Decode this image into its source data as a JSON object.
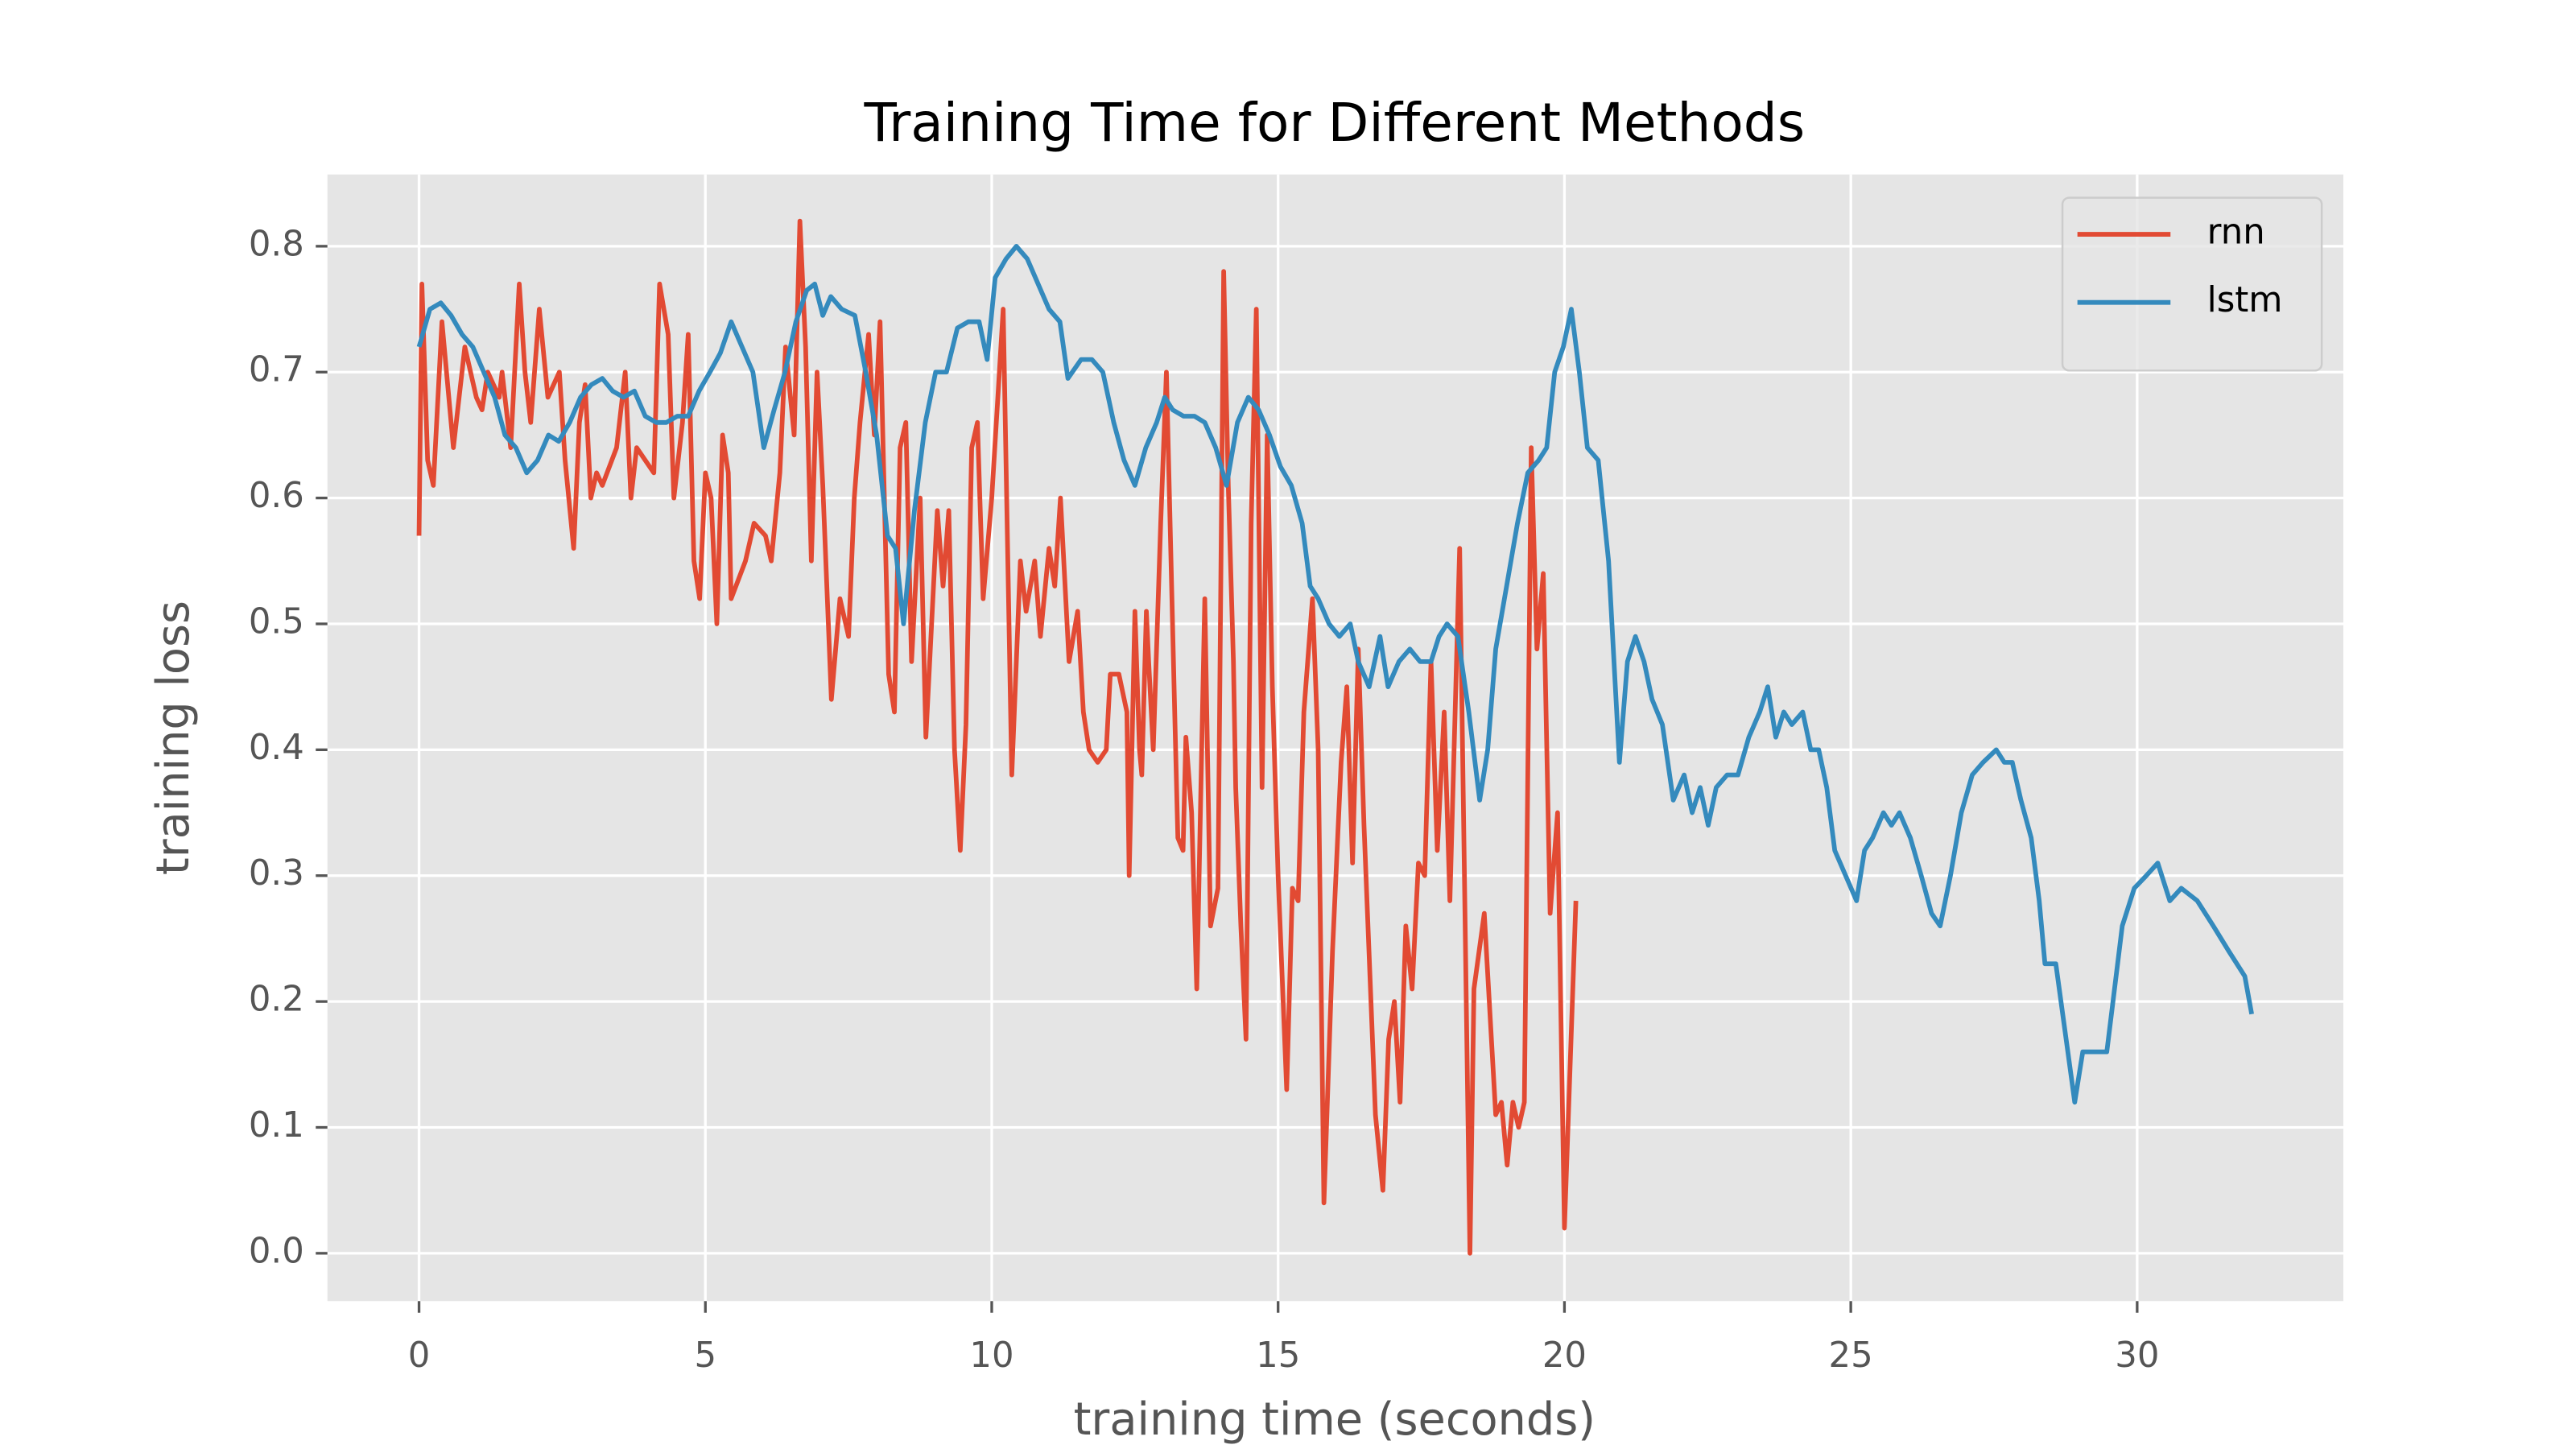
{
  "chart_data": {
    "type": "line",
    "title": "Training Time for Different Methods",
    "xlabel": "training time (seconds)",
    "ylabel": "training loss",
    "xlim": [
      -1.6,
      33.6
    ],
    "ylim": [
      -0.038,
      0.857
    ],
    "xticks": [
      0,
      5,
      10,
      15,
      20,
      25,
      30
    ],
    "yticks": [
      {
        "value": 0,
        "label": "0.0"
      },
      0.1,
      0.2,
      0.3,
      0.4,
      0.5,
      0.6,
      0.7,
      0.8
    ],
    "grid": true,
    "legend": "upper right",
    "series": [
      {
        "name": "rnn",
        "color": "#E24A33",
        "x": [
          0,
          0.05,
          0.15,
          0.25,
          0.4,
          0.6,
          0.8,
          1.0,
          1.1,
          1.2,
          1.4,
          1.45,
          1.6,
          1.75,
          1.85,
          1.95,
          2.1,
          2.25,
          2.45,
          2.55,
          2.7,
          2.8,
          2.9,
          3.0,
          3.1,
          3.2,
          3.45,
          3.6,
          3.7,
          3.8,
          4.1,
          4.2,
          4.35,
          4.45,
          4.6,
          4.7,
          4.8,
          4.9,
          5.0,
          5.1,
          5.2,
          5.3,
          5.4,
          5.45,
          5.7,
          5.85,
          6.05,
          6.15,
          6.3,
          6.4,
          6.55,
          6.65,
          6.75,
          6.85,
          6.95,
          7.05,
          7.2,
          7.35,
          7.5,
          7.6,
          7.7,
          7.85,
          7.95,
          8.05,
          8.2,
          8.3,
          8.4,
          8.5,
          8.6,
          8.75,
          8.85,
          9.05,
          9.15,
          9.25,
          9.35,
          9.45,
          9.55,
          9.65,
          9.75,
          9.85,
          10.0,
          10.2,
          10.35,
          10.5,
          10.6,
          10.75,
          10.85,
          11.0,
          11.1,
          11.2,
          11.35,
          11.5,
          11.6,
          11.7,
          11.85,
          12.0,
          12.07,
          12.22,
          12.36,
          12.4,
          12.5,
          12.58,
          12.62,
          12.7,
          12.74,
          12.82,
          12.95,
          13.05,
          13.2,
          13.25,
          13.34,
          13.39,
          13.49,
          13.58,
          13.72,
          13.82,
          13.95,
          14.05,
          14.13,
          14.22,
          14.26,
          14.35,
          14.44,
          14.53,
          14.62,
          14.72,
          14.81,
          14.9,
          15.0,
          15.15,
          15.25,
          15.35,
          15.45,
          15.6,
          15.7,
          15.8,
          15.95,
          16.1,
          16.2,
          16.3,
          16.4,
          16.5,
          16.7,
          16.83,
          16.93,
          17.03,
          17.13,
          17.23,
          17.34,
          17.45,
          17.56,
          17.67,
          17.78,
          17.9,
          18.0,
          18.17,
          18.35,
          18.42,
          18.6,
          18.7,
          18.8,
          18.9,
          19.0,
          19.1,
          19.2,
          19.3,
          19.42,
          19.52,
          19.63,
          19.75,
          19.88,
          20.0,
          20.2
        ],
        "values": [
          0.57,
          0.77,
          0.63,
          0.61,
          0.74,
          0.64,
          0.72,
          0.68,
          0.67,
          0.7,
          0.68,
          0.7,
          0.64,
          0.77,
          0.7,
          0.66,
          0.75,
          0.68,
          0.7,
          0.63,
          0.56,
          0.66,
          0.69,
          0.6,
          0.62,
          0.61,
          0.64,
          0.7,
          0.6,
          0.64,
          0.62,
          0.77,
          0.73,
          0.6,
          0.66,
          0.73,
          0.55,
          0.52,
          0.62,
          0.6,
          0.5,
          0.65,
          0.62,
          0.52,
          0.55,
          0.58,
          0.57,
          0.55,
          0.62,
          0.72,
          0.65,
          0.82,
          0.72,
          0.55,
          0.7,
          0.61,
          0.44,
          0.52,
          0.49,
          0.6,
          0.66,
          0.73,
          0.65,
          0.74,
          0.46,
          0.43,
          0.64,
          0.66,
          0.47,
          0.6,
          0.41,
          0.59,
          0.53,
          0.59,
          0.4,
          0.32,
          0.42,
          0.64,
          0.66,
          0.52,
          0.6,
          0.75,
          0.38,
          0.55,
          0.51,
          0.55,
          0.49,
          0.56,
          0.53,
          0.6,
          0.47,
          0.51,
          0.43,
          0.4,
          0.39,
          0.4,
          0.46,
          0.46,
          0.43,
          0.3,
          0.51,
          0.4,
          0.38,
          0.51,
          0.47,
          0.4,
          0.58,
          0.7,
          0.42,
          0.33,
          0.32,
          0.41,
          0.35,
          0.21,
          0.52,
          0.26,
          0.29,
          0.78,
          0.61,
          0.47,
          0.37,
          0.26,
          0.17,
          0.58,
          0.75,
          0.37,
          0.65,
          0.45,
          0.3,
          0.13,
          0.29,
          0.28,
          0.43,
          0.52,
          0.4,
          0.04,
          0.24,
          0.39,
          0.45,
          0.31,
          0.48,
          0.34,
          0.11,
          0.05,
          0.17,
          0.2,
          0.12,
          0.26,
          0.21,
          0.31,
          0.3,
          0.47,
          0.32,
          0.43,
          0.28,
          0.56,
          0.0,
          0.21,
          0.27,
          0.19,
          0.11,
          0.12,
          0.07,
          0.12,
          0.1,
          0.12,
          0.64,
          0.48,
          0.54,
          0.27,
          0.35,
          0.02,
          0.28
        ]
      },
      {
        "name": "lstm",
        "color": "#348ABD",
        "x": [
          0,
          0.19,
          0.38,
          0.56,
          0.75,
          0.94,
          1.13,
          1.32,
          1.5,
          1.69,
          1.88,
          2.07,
          2.26,
          2.44,
          2.63,
          2.82,
          3.01,
          3.2,
          3.38,
          3.57,
          3.76,
          3.95,
          4.14,
          4.32,
          4.51,
          4.7,
          4.89,
          5.08,
          5.26,
          5.45,
          5.64,
          5.83,
          6.02,
          6.2,
          6.39,
          6.58,
          6.77,
          6.91,
          7.05,
          7.19,
          7.38,
          7.61,
          7.8,
          7.99,
          8.18,
          8.32,
          8.46,
          8.65,
          8.84,
          9.02,
          9.21,
          9.4,
          9.59,
          9.78,
          9.92,
          10.06,
          10.25,
          10.43,
          10.62,
          10.81,
          11.0,
          11.19,
          11.33,
          11.56,
          11.75,
          11.94,
          12.13,
          12.31,
          12.5,
          12.69,
          12.88,
          13.02,
          13.16,
          13.35,
          13.54,
          13.72,
          13.91,
          14.1,
          14.29,
          14.48,
          14.66,
          14.85,
          15.04,
          15.23,
          15.42,
          15.56,
          15.7,
          15.89,
          16.07,
          16.26,
          16.4,
          16.59,
          16.78,
          16.92,
          17.11,
          17.3,
          17.48,
          17.67,
          17.81,
          17.95,
          18.14,
          18.33,
          18.52,
          18.66,
          18.8,
          18.99,
          19.18,
          19.36,
          19.55,
          19.69,
          19.83,
          19.98,
          20.12,
          20.26,
          20.4,
          20.59,
          20.77,
          20.96,
          21.1,
          21.24,
          21.39,
          21.53,
          21.71,
          21.9,
          22.09,
          22.23,
          22.37,
          22.51,
          22.65,
          22.84,
          23.03,
          23.22,
          23.41,
          23.55,
          23.69,
          23.83,
          23.97,
          24.16,
          24.3,
          24.44,
          24.58,
          24.72,
          24.91,
          25.1,
          25.24,
          25.38,
          25.57,
          25.71,
          25.85,
          26.04,
          26.23,
          26.41,
          26.56,
          26.74,
          26.93,
          27.12,
          27.31,
          27.54,
          27.68,
          27.82,
          27.97,
          28.15,
          28.29,
          28.39,
          28.58,
          28.76,
          28.91,
          29.05,
          29.26,
          29.47,
          29.74,
          29.95,
          30.16,
          30.36,
          30.57,
          30.77,
          31.05,
          31.33,
          31.6,
          31.88,
          32.0
        ],
        "values": [
          0.72,
          0.75,
          0.755,
          0.745,
          0.73,
          0.72,
          0.7,
          0.68,
          0.65,
          0.64,
          0.62,
          0.63,
          0.65,
          0.645,
          0.66,
          0.68,
          0.69,
          0.695,
          0.685,
          0.68,
          0.685,
          0.665,
          0.66,
          0.66,
          0.665,
          0.665,
          0.685,
          0.7,
          0.715,
          0.74,
          0.72,
          0.7,
          0.64,
          0.67,
          0.7,
          0.74,
          0.765,
          0.77,
          0.745,
          0.76,
          0.75,
          0.745,
          0.7,
          0.65,
          0.57,
          0.56,
          0.5,
          0.59,
          0.66,
          0.7,
          0.7,
          0.735,
          0.74,
          0.74,
          0.71,
          0.775,
          0.79,
          0.8,
          0.79,
          0.77,
          0.75,
          0.74,
          0.695,
          0.71,
          0.71,
          0.7,
          0.66,
          0.63,
          0.61,
          0.64,
          0.66,
          0.68,
          0.67,
          0.665,
          0.665,
          0.66,
          0.64,
          0.61,
          0.66,
          0.68,
          0.67,
          0.65,
          0.625,
          0.61,
          0.58,
          0.53,
          0.52,
          0.5,
          0.49,
          0.5,
          0.47,
          0.45,
          0.49,
          0.45,
          0.47,
          0.48,
          0.47,
          0.47,
          0.49,
          0.5,
          0.49,
          0.43,
          0.36,
          0.4,
          0.48,
          0.53,
          0.58,
          0.62,
          0.63,
          0.64,
          0.7,
          0.72,
          0.75,
          0.7,
          0.64,
          0.63,
          0.55,
          0.39,
          0.47,
          0.49,
          0.47,
          0.44,
          0.42,
          0.36,
          0.38,
          0.35,
          0.37,
          0.34,
          0.37,
          0.38,
          0.38,
          0.41,
          0.43,
          0.45,
          0.41,
          0.43,
          0.42,
          0.43,
          0.4,
          0.4,
          0.37,
          0.32,
          0.3,
          0.28,
          0.32,
          0.33,
          0.35,
          0.34,
          0.35,
          0.33,
          0.3,
          0.27,
          0.26,
          0.3,
          0.35,
          0.38,
          0.39,
          0.4,
          0.39,
          0.39,
          0.36,
          0.33,
          0.28,
          0.23,
          0.23,
          0.17,
          0.12,
          0.16,
          0.16,
          0.16,
          0.26,
          0.29,
          0.3,
          0.31,
          0.28,
          0.29,
          0.28,
          0.26,
          0.24,
          0.22,
          0.19
        ]
      }
    ]
  }
}
